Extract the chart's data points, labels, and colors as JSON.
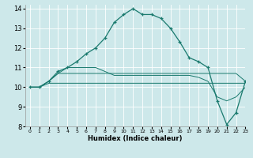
{
  "xlabel": "Humidex (Indice chaleur)",
  "xlim": [
    -0.5,
    23
  ],
  "ylim": [
    8,
    14.2
  ],
  "yticks": [
    8,
    9,
    10,
    11,
    12,
    13,
    14
  ],
  "xticks": [
    0,
    1,
    2,
    3,
    4,
    5,
    6,
    7,
    8,
    9,
    10,
    11,
    12,
    13,
    14,
    15,
    16,
    17,
    18,
    19,
    20,
    21,
    22,
    23
  ],
  "bg_color": "#cde8ea",
  "grid_color": "#ffffff",
  "line_color": "#1a7a6e",
  "line1_x": [
    0,
    1,
    2,
    3,
    4,
    5,
    6,
    7,
    8,
    9,
    10,
    11,
    12,
    13,
    14,
    15,
    16,
    17,
    18,
    19,
    20,
    21,
    22,
    23
  ],
  "line1_y": [
    10.0,
    10.0,
    10.2,
    10.2,
    10.2,
    10.2,
    10.2,
    10.2,
    10.2,
    10.2,
    10.2,
    10.2,
    10.2,
    10.2,
    10.2,
    10.2,
    10.2,
    10.2,
    10.2,
    10.2,
    10.2,
    10.2,
    10.2,
    10.2
  ],
  "line2_x": [
    0,
    1,
    2,
    3,
    4,
    5,
    6,
    7,
    8,
    9,
    10,
    11,
    12,
    13,
    14,
    15,
    16,
    17,
    18,
    19,
    20,
    21,
    22,
    23
  ],
  "line2_y": [
    10.0,
    10.0,
    10.3,
    10.7,
    10.7,
    10.7,
    10.7,
    10.7,
    10.7,
    10.7,
    10.7,
    10.7,
    10.7,
    10.7,
    10.7,
    10.7,
    10.7,
    10.7,
    10.7,
    10.7,
    10.7,
    10.7,
    10.7,
    10.3
  ],
  "line3_x": [
    0,
    1,
    2,
    3,
    4,
    5,
    6,
    7,
    8,
    9,
    10,
    11,
    12,
    13,
    14,
    15,
    16,
    17,
    18,
    19,
    20,
    21,
    22,
    23
  ],
  "line3_y": [
    10.0,
    10.0,
    10.3,
    10.7,
    11.0,
    11.0,
    11.0,
    11.0,
    10.8,
    10.6,
    10.6,
    10.6,
    10.6,
    10.6,
    10.6,
    10.6,
    10.6,
    10.6,
    10.5,
    10.3,
    9.5,
    9.3,
    9.5,
    10.0
  ],
  "line4_x": [
    0,
    1,
    2,
    3,
    4,
    5,
    6,
    7,
    8,
    9,
    10,
    11,
    12,
    13,
    14,
    15,
    16,
    17,
    18,
    19,
    20,
    21,
    22,
    23
  ],
  "line4_y": [
    10.0,
    10.0,
    10.3,
    10.8,
    11.0,
    11.3,
    11.7,
    12.0,
    12.5,
    13.3,
    13.7,
    14.0,
    13.7,
    13.7,
    13.5,
    13.0,
    12.3,
    11.5,
    11.3,
    11.0,
    9.3,
    8.1,
    8.7,
    10.3
  ]
}
